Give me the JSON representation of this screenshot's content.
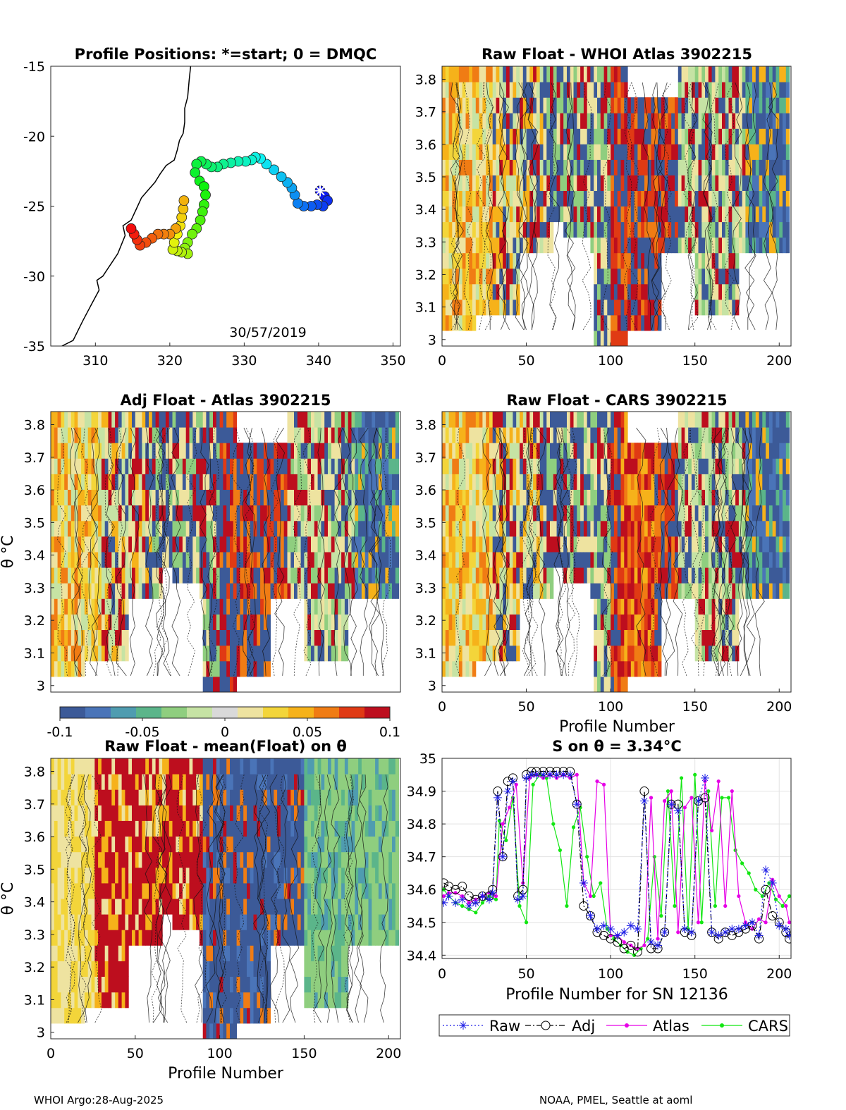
{
  "footer": {
    "left": "WHOI Argo:28-Aug-2025",
    "right": "NOAA, PMEL, Seattle at aoml"
  },
  "colors": {
    "raw": "#1f1fe6",
    "adj": "#000000",
    "atlas": "#e600e6",
    "cars": "#12e612",
    "cmap": [
      "#3c5a98",
      "#4a74b8",
      "#4f9cb0",
      "#5bb58a",
      "#8fce7f",
      "#c6e3a4",
      "#d9d9d9",
      "#eee3a0",
      "#f3d53a",
      "#f6b21a",
      "#f07c14",
      "#e03a14",
      "#bd0e1e"
    ]
  },
  "chart_data": [
    {
      "type": "map",
      "title": "Profile Positions: *=start; 0 = DMQC",
      "annotation": "30/57/2019",
      "xlim": [
        304,
        351
      ],
      "ylim": [
        -35,
        -15
      ],
      "xticks": [
        310,
        320,
        330,
        340,
        350
      ],
      "yticks": [
        -15,
        -20,
        -25,
        -30,
        -35
      ],
      "track": [
        [
          340.2,
          -23.9
        ],
        [
          340.8,
          -24.3
        ],
        [
          341.2,
          -24.6
        ],
        [
          340.6,
          -25.0
        ],
        [
          339.8,
          -24.9
        ],
        [
          339.0,
          -25.0
        ],
        [
          338.0,
          -25.0
        ],
        [
          337.2,
          -24.8
        ],
        [
          336.8,
          -24.2
        ],
        [
          336.4,
          -23.7
        ],
        [
          335.8,
          -23.3
        ],
        [
          335.0,
          -22.9
        ],
        [
          334.0,
          -22.4
        ],
        [
          333.0,
          -22.0
        ],
        [
          332.2,
          -21.6
        ],
        [
          331.5,
          -21.5
        ],
        [
          331.0,
          -21.7
        ],
        [
          330.2,
          -21.8
        ],
        [
          329.2,
          -21.8
        ],
        [
          328.2,
          -21.9
        ],
        [
          327.2,
          -22.0
        ],
        [
          326.4,
          -22.2
        ],
        [
          325.6,
          -22.2
        ],
        [
          324.9,
          -22.0
        ],
        [
          324.2,
          -21.8
        ],
        [
          323.6,
          -22.0
        ],
        [
          323.4,
          -22.6
        ],
        [
          324.0,
          -23.2
        ],
        [
          324.6,
          -23.6
        ],
        [
          324.8,
          -24.2
        ],
        [
          324.6,
          -24.9
        ],
        [
          324.4,
          -25.4
        ],
        [
          324.1,
          -26.0
        ],
        [
          323.6,
          -26.6
        ],
        [
          323.0,
          -27.0
        ],
        [
          322.4,
          -27.6
        ],
        [
          322.0,
          -28.0
        ],
        [
          322.4,
          -28.4
        ],
        [
          321.6,
          -28.3
        ],
        [
          321.0,
          -28.2
        ],
        [
          320.4,
          -28.1
        ],
        [
          320.6,
          -27.6
        ],
        [
          321.0,
          -27.0
        ],
        [
          321.4,
          -26.4
        ],
        [
          321.6,
          -25.8
        ],
        [
          321.8,
          -25.2
        ],
        [
          321.9,
          -24.6
        ],
        [
          320.8,
          -26.6
        ],
        [
          320.0,
          -27.0
        ],
        [
          319.2,
          -27.0
        ],
        [
          318.4,
          -27.0
        ],
        [
          317.6,
          -27.3
        ],
        [
          316.8,
          -27.6
        ],
        [
          316.0,
          -27.8
        ],
        [
          315.6,
          -27.4
        ],
        [
          315.2,
          -27.0
        ],
        [
          314.8,
          -26.6
        ]
      ]
    },
    {
      "type": "heatmap",
      "title": "Raw Float - WHOI Atlas  3902215",
      "xlim": [
        0,
        207
      ],
      "ylim": [
        2.98,
        3.84
      ],
      "xticks": [
        0,
        50,
        100,
        150,
        200
      ],
      "yticks": [
        3,
        3.1,
        3.2,
        3.3,
        3.4,
        3.5,
        3.6,
        3.7,
        3.8
      ],
      "xlabel": "",
      "ylabel": "",
      "seed": 11,
      "mode": "atlas"
    },
    {
      "type": "heatmap",
      "title": "Adj Float - Atlas  3902215",
      "xlim": [
        0,
        207
      ],
      "ylim": [
        2.98,
        3.84
      ],
      "xticks": [],
      "yticks": [
        3,
        3.1,
        3.2,
        3.3,
        3.4,
        3.5,
        3.6,
        3.7,
        3.8
      ],
      "xlabel": "",
      "ylabel": "θ °C",
      "seed": 23,
      "mode": "adj"
    },
    {
      "type": "heatmap",
      "title": "Raw Float - CARS  3902215",
      "xlim": [
        0,
        207
      ],
      "ylim": [
        2.98,
        3.84
      ],
      "xticks": [
        0,
        50,
        100,
        150,
        200
      ],
      "yticks": [
        3,
        3.1,
        3.2,
        3.3,
        3.4,
        3.5,
        3.6,
        3.7,
        3.8
      ],
      "xlabel": "Profile Number",
      "ylabel": "",
      "seed": 37,
      "mode": "cars"
    },
    {
      "type": "colorbar",
      "range": [
        -0.1,
        0.1
      ],
      "ticks": [
        "-0.1",
        "-0.05",
        "0",
        "0.05",
        "0.1"
      ]
    },
    {
      "type": "heatmap",
      "title": "Raw Float - mean(Float) on θ",
      "xlim": [
        0,
        207
      ],
      "ylim": [
        2.98,
        3.84
      ],
      "xticks": [
        0,
        50,
        100,
        150,
        200
      ],
      "yticks": [
        3,
        3.1,
        3.2,
        3.3,
        3.4,
        3.5,
        3.6,
        3.7,
        3.8
      ],
      "xlabel": "Profile Number",
      "ylabel": "θ °C",
      "seed": 51,
      "mode": "mean"
    },
    {
      "type": "line",
      "title": "S on θ = 3.34°C",
      "xlabel": "Profile Number for SN 12136",
      "xlim": [
        0,
        207
      ],
      "ylim": [
        34.39,
        35.0
      ],
      "xticks": [
        0,
        50,
        100,
        150,
        200
      ],
      "yticks": [
        34.4,
        34.5,
        34.6,
        34.7,
        34.8,
        34.9,
        35
      ],
      "legend": [
        "Raw",
        "Adj",
        "Atlas",
        "CARS"
      ],
      "series": [
        {
          "name": "Raw",
          "x": [
            1,
            4,
            8,
            12,
            16,
            20,
            24,
            28,
            30,
            33,
            36,
            39,
            42,
            45,
            48,
            50,
            53,
            56,
            60,
            64,
            68,
            72,
            76,
            80,
            84,
            88,
            92,
            96,
            100,
            104,
            108,
            112,
            116,
            120,
            124,
            128,
            132,
            136,
            140,
            144,
            148,
            152,
            156,
            160,
            164,
            168,
            172,
            176,
            180,
            184,
            188,
            192,
            196,
            200,
            204,
            206
          ],
          "y": [
            34.56,
            34.58,
            34.56,
            34.57,
            34.55,
            34.56,
            34.58,
            34.57,
            34.59,
            34.88,
            34.7,
            34.9,
            34.93,
            34.57,
            34.58,
            34.94,
            34.95,
            34.95,
            34.95,
            34.95,
            34.95,
            34.95,
            34.95,
            34.86,
            34.62,
            34.52,
            34.48,
            34.49,
            34.48,
            34.46,
            34.47,
            34.49,
            34.48,
            34.87,
            34.44,
            34.43,
            34.47,
            34.86,
            34.84,
            34.48,
            34.47,
            34.87,
            34.94,
            34.47,
            34.46,
            34.47,
            34.48,
            34.48,
            34.49,
            34.5,
            34.46,
            34.66,
            34.62,
            34.49,
            34.48,
            34.46
          ]
        },
        {
          "name": "Adj",
          "x": [
            1,
            4,
            8,
            12,
            16,
            20,
            24,
            28,
            30,
            33,
            36,
            39,
            42,
            45,
            48,
            50,
            53,
            56,
            60,
            64,
            68,
            72,
            76,
            80,
            84,
            88,
            92,
            96,
            100,
            104,
            108,
            112,
            116,
            120,
            124,
            128,
            132,
            136,
            140,
            144,
            148,
            152,
            156,
            160,
            164,
            168,
            172,
            176,
            180,
            184,
            188,
            192,
            196,
            200,
            204,
            206
          ],
          "y": [
            34.62,
            34.61,
            34.6,
            34.61,
            34.58,
            34.57,
            34.58,
            34.58,
            34.6,
            34.9,
            34.7,
            34.93,
            34.94,
            34.58,
            34.6,
            34.95,
            34.96,
            34.96,
            34.96,
            34.96,
            34.96,
            34.96,
            34.96,
            34.86,
            34.55,
            34.52,
            34.47,
            34.46,
            34.45,
            34.44,
            34.42,
            34.43,
            34.41,
            34.9,
            34.42,
            34.42,
            34.47,
            34.86,
            34.86,
            34.47,
            34.46,
            34.87,
            34.88,
            34.47,
            34.45,
            34.47,
            34.46,
            34.47,
            34.48,
            34.49,
            34.45,
            34.6,
            34.52,
            34.5,
            34.47,
            34.45
          ]
        },
        {
          "name": "Atlas",
          "x": [
            1,
            4,
            8,
            12,
            16,
            20,
            24,
            28,
            32,
            36,
            40,
            44,
            48,
            52,
            56,
            60,
            64,
            68,
            72,
            76,
            80,
            84,
            88,
            92,
            96,
            100,
            104,
            108,
            112,
            116,
            120,
            124,
            128,
            132,
            136,
            140,
            144,
            148,
            152,
            156,
            160,
            164,
            168,
            172,
            176,
            180,
            184,
            188,
            192,
            196,
            200,
            204,
            206
          ],
          "y": [
            34.58,
            34.59,
            34.59,
            34.58,
            34.56,
            34.57,
            34.58,
            34.59,
            34.58,
            34.8,
            34.85,
            34.92,
            34.62,
            34.94,
            34.95,
            34.94,
            34.95,
            34.94,
            34.95,
            34.94,
            34.95,
            34.62,
            34.58,
            34.93,
            34.92,
            34.46,
            34.46,
            34.44,
            34.43,
            34.42,
            34.43,
            34.88,
            34.45,
            34.87,
            34.9,
            34.47,
            34.85,
            34.88,
            34.5,
            34.93,
            34.78,
            34.93,
            34.55,
            34.9,
            34.58,
            34.5,
            34.48,
            34.51,
            34.5,
            34.63,
            34.58,
            34.55,
            34.5
          ]
        },
        {
          "name": "CARS",
          "x": [
            1,
            4,
            8,
            12,
            16,
            20,
            24,
            28,
            32,
            34,
            38,
            42,
            46,
            50,
            54,
            58,
            62,
            66,
            70,
            74,
            78,
            82,
            86,
            90,
            94,
            98,
            102,
            106,
            110,
            114,
            118,
            122,
            126,
            130,
            134,
            138,
            142,
            146,
            150,
            154,
            158,
            162,
            166,
            170,
            174,
            178,
            182,
            186,
            190,
            194,
            198,
            202,
            206
          ],
          "y": [
            34.6,
            34.58,
            34.56,
            34.55,
            34.54,
            34.53,
            34.56,
            34.58,
            34.57,
            34.81,
            34.75,
            34.88,
            34.55,
            34.5,
            34.92,
            34.95,
            34.94,
            34.8,
            34.72,
            34.55,
            34.79,
            34.85,
            34.7,
            34.58,
            34.62,
            34.48,
            34.45,
            34.43,
            34.41,
            34.4,
            34.42,
            34.45,
            34.7,
            34.52,
            34.9,
            34.55,
            34.94,
            34.48,
            34.95,
            34.5,
            34.9,
            34.55,
            34.88,
            34.88,
            34.72,
            34.68,
            34.65,
            34.6,
            34.58,
            34.62,
            34.57,
            34.55,
            34.58
          ]
        }
      ]
    }
  ]
}
